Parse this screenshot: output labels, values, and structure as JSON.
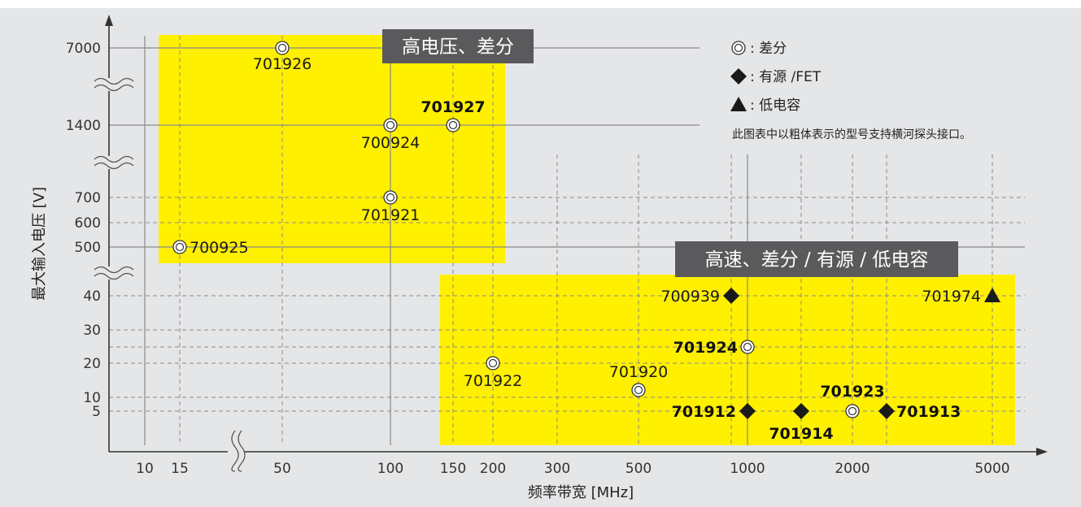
{
  "chart_data": {
    "type": "scatter",
    "xlabel": "频率带宽 [MHz]",
    "ylabel": "最大输入电压 [V]",
    "x_ticks": [
      "10",
      "15",
      "50",
      "100",
      "150",
      "200",
      "300",
      "500",
      "1000",
      "2000",
      "5000"
    ],
    "y_ticks": [
      "7000",
      "1400",
      "700",
      "600",
      "500",
      "40",
      "30",
      "20",
      "10",
      "5"
    ],
    "axis_breaks": {
      "x": "between 15 and 50",
      "y": [
        "between 500 and 40",
        "between 700 and 1400",
        "between 1400 and 7000"
      ]
    },
    "grid": true,
    "regions": [
      {
        "title": "高电压、差分",
        "color": "#fff000"
      },
      {
        "title": "高速、差分 / 有源 / 低电容",
        "color": "#fff000"
      }
    ],
    "legend": {
      "placement": "top-right",
      "items": [
        {
          "symbol": "double-circle",
          "label": ": 差分"
        },
        {
          "symbol": "diamond",
          "label": ": 有源 /FET"
        },
        {
          "symbol": "triangle",
          "label": ": 低电容"
        }
      ],
      "note": "此图表中以粗体表示的型号支持横河探头接口。"
    },
    "points": [
      {
        "model": "701926",
        "x": 50,
        "y": 7000,
        "type": "double-circle",
        "bold": false
      },
      {
        "model": "701927",
        "x": 150,
        "y": 1400,
        "type": "double-circle",
        "bold": true
      },
      {
        "model": "700924",
        "x": 100,
        "y": 1400,
        "type": "double-circle",
        "bold": false
      },
      {
        "model": "701921",
        "x": 100,
        "y": 700,
        "type": "double-circle",
        "bold": false
      },
      {
        "model": "700925",
        "x": 15,
        "y": 500,
        "type": "double-circle",
        "bold": false
      },
      {
        "model": "700939",
        "x": 900,
        "y": 40,
        "type": "diamond",
        "bold": false
      },
      {
        "model": "701974",
        "x": 5000,
        "y": 40,
        "type": "triangle",
        "bold": false
      },
      {
        "model": "701924",
        "x": 1000,
        "y": 25,
        "type": "double-circle",
        "bold": true
      },
      {
        "model": "701922",
        "x": 200,
        "y": 20,
        "type": "double-circle",
        "bold": false
      },
      {
        "model": "701920",
        "x": 500,
        "y": 12,
        "type": "double-circle",
        "bold": false
      },
      {
        "model": "701912",
        "x": 1000,
        "y": 5,
        "type": "diamond",
        "bold": true
      },
      {
        "model": "701914",
        "x": 1400,
        "y": 5,
        "type": "diamond",
        "bold": true
      },
      {
        "model": "701923",
        "x": 2000,
        "y": 5,
        "type": "double-circle",
        "bold": true
      },
      {
        "model": "701913",
        "x": 2500,
        "y": 5,
        "type": "diamond",
        "bold": true
      }
    ]
  }
}
